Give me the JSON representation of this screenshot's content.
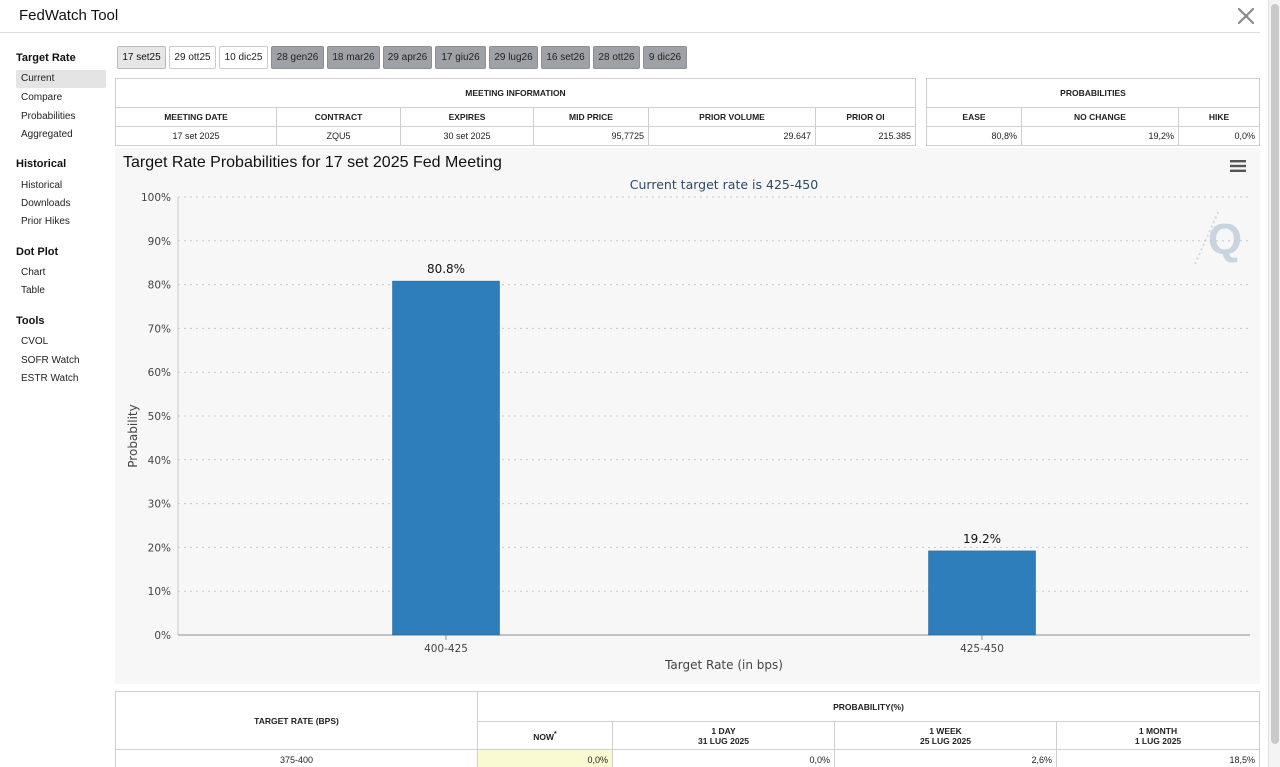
{
  "app": {
    "title": "FedWatch Tool"
  },
  "sidebar": {
    "sections": [
      {
        "heading": "Target Rate",
        "items": [
          "Current",
          "Compare",
          "Probabilities",
          "Aggregated"
        ]
      },
      {
        "heading": "Historical",
        "items": [
          "Historical",
          "Downloads",
          "Prior Hikes"
        ]
      },
      {
        "heading": "Dot Plot",
        "items": [
          "Chart",
          "Table"
        ]
      },
      {
        "heading": "Tools",
        "items": [
          "CVOL",
          "SOFR Watch",
          "ESTR Watch"
        ]
      }
    ]
  },
  "tabs": [
    "17 set25",
    "29 ott25",
    "10 dic25",
    "28 gen26",
    "18 mar26",
    "29 apr26",
    "17 giu26",
    "29 lug26",
    "16 set26",
    "28 ott26",
    "9 dic26"
  ],
  "meeting_info": {
    "caption": "MEETING INFORMATION",
    "headers": [
      "MEETING DATE",
      "CONTRACT",
      "EXPIRES",
      "MID PRICE",
      "PRIOR VOLUME",
      "PRIOR OI"
    ],
    "row": [
      "17 set 2025",
      "ZQU5",
      "30 set 2025",
      "95,7725",
      "29.647",
      "215.385"
    ]
  },
  "probabilities": {
    "caption": "PROBABILITIES",
    "headers": [
      "EASE",
      "NO CHANGE",
      "HIKE"
    ],
    "row": [
      "80,8%",
      "19,2%",
      "0,0%"
    ]
  },
  "chart": {
    "title": "Target Rate Probabilities for 17 set 2025 Fed Meeting",
    "subtitle": "Current target rate is 425-450",
    "watermark": "Q"
  },
  "chart_data": {
    "type": "bar",
    "title": "Target Rate Probabilities for 17 set 2025 Fed Meeting",
    "subtitle": "Current target rate is 425-450",
    "xlabel": "Target Rate (in bps)",
    "ylabel": "Probability",
    "categories": [
      "400-425",
      "425-450"
    ],
    "values": [
      80.8,
      19.2
    ],
    "value_labels": [
      "80.8%",
      "19.2%"
    ],
    "ylim": [
      0,
      100
    ],
    "yticks": [
      "0%",
      "10%",
      "20%",
      "30%",
      "40%",
      "50%",
      "60%",
      "70%",
      "80%",
      "90%",
      "100%"
    ],
    "grid": true,
    "color": "#2f7ebc"
  },
  "bottom_table": {
    "caption": "PROBABILITY(%)",
    "rate_header": "TARGET RATE (BPS)",
    "now": "NOW",
    "now_mark": "*",
    "periods": [
      {
        "label": "1 DAY",
        "date": "31 LUG 2025"
      },
      {
        "label": "1 WEEK",
        "date": "25 LUG 2025"
      },
      {
        "label": "1 MONTH",
        "date": "1 LUG 2025"
      }
    ],
    "rows": [
      {
        "rate": "375-400",
        "now": "0,0%",
        "values": [
          "0,0%",
          "2,6%",
          "18,5%"
        ]
      }
    ]
  }
}
